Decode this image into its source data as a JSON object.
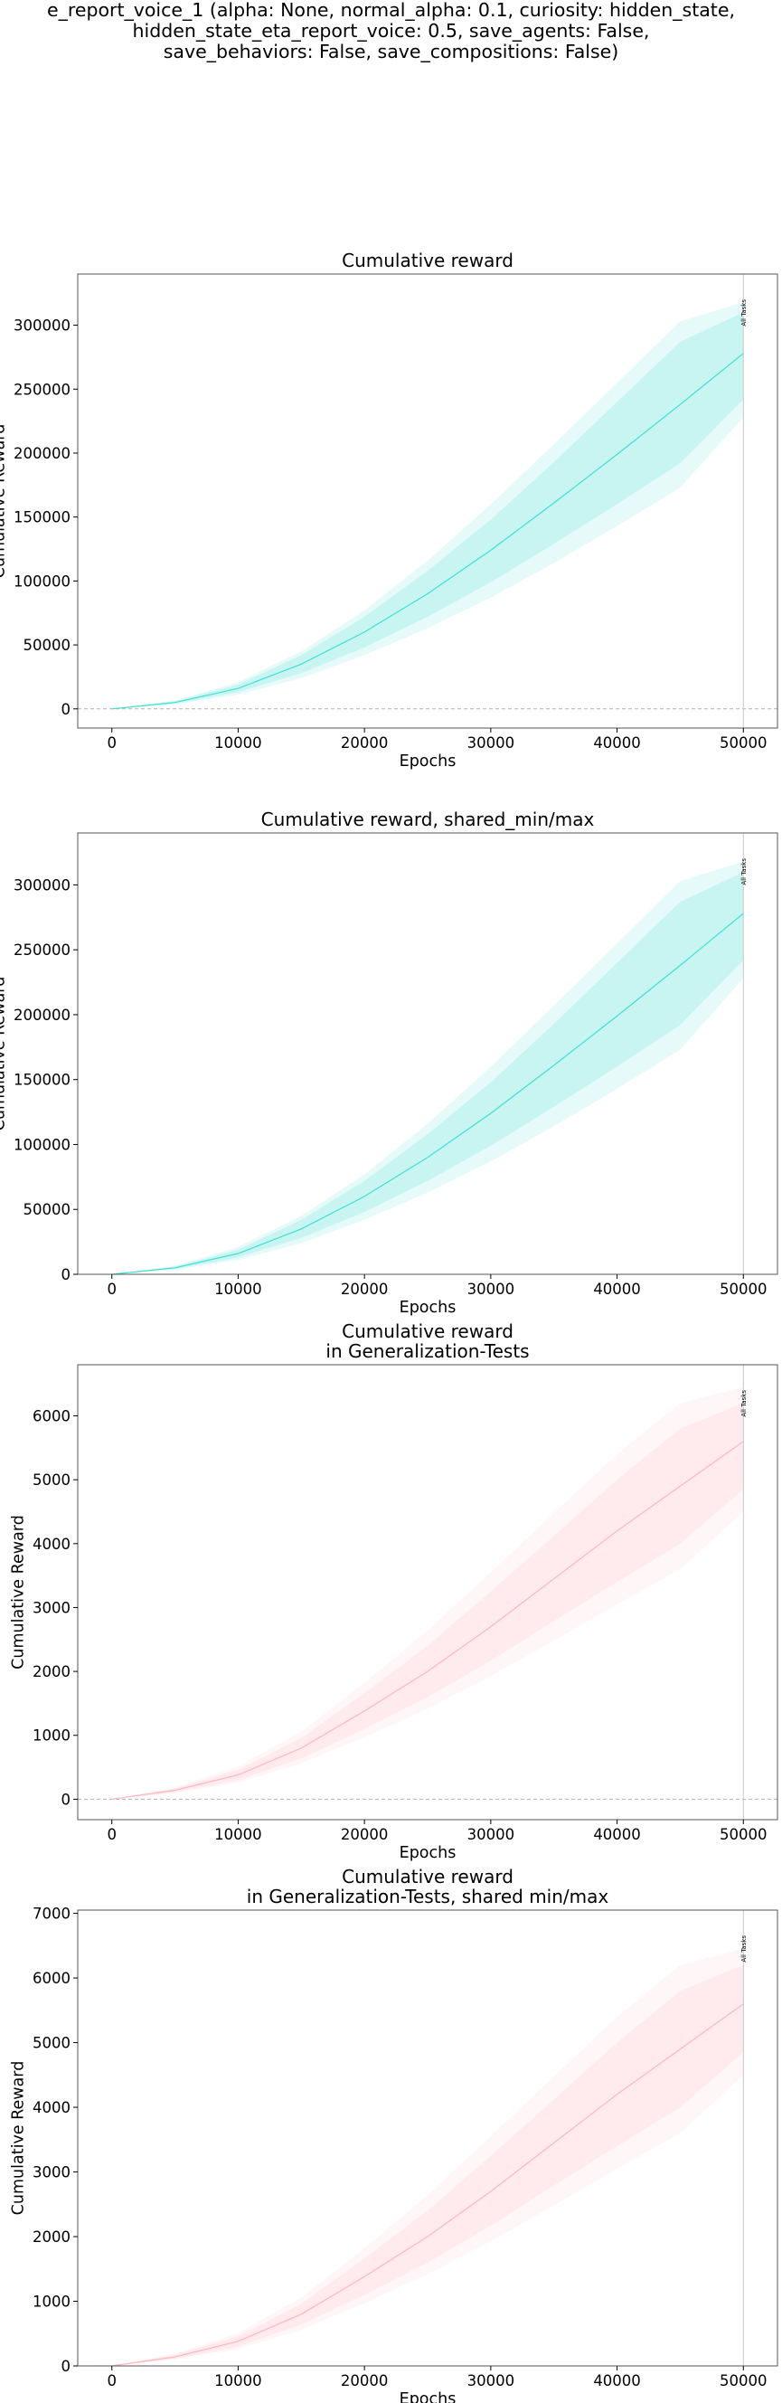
{
  "figure": {
    "title_lines": [
      "e_report_voice_1 (alpha: None, normal_alpha: 0.1, curiosity: hidden_state,",
      "hidden_state_eta_report_voice: 0.5, save_agents: False,",
      "save_behaviors: False, save_compositions: False)"
    ]
  },
  "chart_data": [
    {
      "type": "line",
      "title_lines": [
        "Cumulative reward"
      ],
      "xlabel": "Epochs",
      "ylabel": "Cumulative Reward",
      "xlim": [
        -2700,
        52700
      ],
      "ylim": [
        -15000,
        340000
      ],
      "xticks": [
        0,
        10000,
        20000,
        30000,
        40000,
        50000
      ],
      "yticks": [
        0,
        50000,
        100000,
        150000,
        200000,
        250000,
        300000
      ],
      "zero_line": true,
      "vline": {
        "x": 50000,
        "label": "All Tasks"
      },
      "color": "#40e0d0",
      "series": [
        {
          "x": [
            0,
            5000,
            10000,
            15000,
            20000,
            25000,
            30000,
            35000,
            40000,
            45000,
            50000
          ],
          "y": [
            0,
            5000,
            16000,
            35000,
            60000,
            90000,
            124000,
            161000,
            199000,
            238000,
            278000
          ],
          "std_low": [
            0,
            4000,
            13000,
            28000,
            48000,
            72000,
            99000,
            129000,
            160000,
            192000,
            242000
          ],
          "std_high": [
            0,
            6000,
            19000,
            42000,
            72000,
            108000,
            148000,
            193000,
            240000,
            287000,
            310000
          ],
          "min": [
            0,
            3500,
            11000,
            24000,
            42000,
            63000,
            87000,
            114000,
            143000,
            173000,
            228000
          ],
          "max": [
            0,
            6500,
            21000,
            45000,
            77000,
            116000,
            160000,
            207000,
            255000,
            303000,
            318000
          ]
        }
      ]
    },
    {
      "type": "line",
      "title_lines": [
        "Cumulative reward, shared_min/max"
      ],
      "xlabel": "Epochs",
      "ylabel": "Cumulative Reward",
      "xlim": [
        -2700,
        52700
      ],
      "ylim": [
        0,
        340000
      ],
      "xticks": [
        0,
        10000,
        20000,
        30000,
        40000,
        50000
      ],
      "yticks": [
        0,
        50000,
        100000,
        150000,
        200000,
        250000,
        300000
      ],
      "zero_line": false,
      "vline": {
        "x": 50000,
        "label": "All Tasks"
      },
      "color": "#40e0d0",
      "series": [
        {
          "x": [
            0,
            5000,
            10000,
            15000,
            20000,
            25000,
            30000,
            35000,
            40000,
            45000,
            50000
          ],
          "y": [
            0,
            5000,
            16000,
            35000,
            60000,
            90000,
            124000,
            161000,
            199000,
            238000,
            278000
          ],
          "std_low": [
            0,
            4000,
            13000,
            28000,
            48000,
            72000,
            99000,
            129000,
            160000,
            192000,
            242000
          ],
          "std_high": [
            0,
            6000,
            19000,
            42000,
            72000,
            108000,
            148000,
            193000,
            240000,
            287000,
            310000
          ],
          "min": [
            0,
            3500,
            11000,
            24000,
            42000,
            63000,
            87000,
            114000,
            143000,
            173000,
            228000
          ],
          "max": [
            0,
            6500,
            21000,
            45000,
            77000,
            116000,
            160000,
            207000,
            255000,
            303000,
            318000
          ]
        }
      ]
    },
    {
      "type": "line",
      "title_lines": [
        "Cumulative reward",
        "in Generalization-Tests"
      ],
      "xlabel": "Epochs",
      "ylabel": "Cumulative Reward",
      "xlim": [
        -2700,
        52700
      ],
      "ylim": [
        -320,
        6800
      ],
      "xticks": [
        0,
        10000,
        20000,
        30000,
        40000,
        50000
      ],
      "yticks": [
        0,
        1000,
        2000,
        3000,
        4000,
        5000,
        6000
      ],
      "zero_line": true,
      "vline": {
        "x": 50000,
        "label": "All Tasks"
      },
      "color": "#ffb6c1",
      "series": [
        {
          "x": [
            0,
            5000,
            10000,
            15000,
            20000,
            25000,
            30000,
            35000,
            40000,
            45000,
            50000
          ],
          "y": [
            0,
            140,
            380,
            800,
            1380,
            2000,
            2700,
            3450,
            4200,
            4900,
            5600
          ],
          "std_low": [
            0,
            110,
            300,
            640,
            1100,
            1600,
            2170,
            2790,
            3400,
            4000,
            4850
          ],
          "std_high": [
            0,
            170,
            460,
            960,
            1660,
            2400,
            3250,
            4120,
            5000,
            5800,
            6200
          ],
          "min": [
            0,
            95,
            260,
            560,
            970,
            1420,
            1930,
            2480,
            3050,
            3600,
            4500
          ],
          "max": [
            0,
            190,
            510,
            1060,
            1820,
            2640,
            3550,
            4480,
            5400,
            6200,
            6450
          ]
        }
      ]
    },
    {
      "type": "line",
      "title_lines": [
        "Cumulative reward",
        "in Generalization-Tests, shared min/max"
      ],
      "xlabel": "Epochs",
      "ylabel": "Cumulative Reward",
      "xlim": [
        -2700,
        52700
      ],
      "ylim": [
        0,
        7050
      ],
      "xticks": [
        0,
        10000,
        20000,
        30000,
        40000,
        50000
      ],
      "yticks": [
        0,
        1000,
        2000,
        3000,
        4000,
        5000,
        6000,
        7000
      ],
      "zero_line": false,
      "vline": {
        "x": 50000,
        "label": "All Tasks"
      },
      "color": "#ffb6c1",
      "series": [
        {
          "x": [
            0,
            5000,
            10000,
            15000,
            20000,
            25000,
            30000,
            35000,
            40000,
            45000,
            50000
          ],
          "y": [
            0,
            140,
            380,
            800,
            1380,
            2000,
            2700,
            3450,
            4200,
            4900,
            5600
          ],
          "std_low": [
            0,
            110,
            300,
            640,
            1100,
            1600,
            2170,
            2790,
            3400,
            4000,
            4850
          ],
          "std_high": [
            0,
            170,
            460,
            960,
            1660,
            2400,
            3250,
            4120,
            5000,
            5800,
            6200
          ],
          "min": [
            0,
            95,
            260,
            560,
            970,
            1420,
            1930,
            2480,
            3050,
            3600,
            4500
          ],
          "max": [
            0,
            190,
            510,
            1060,
            1820,
            2640,
            3550,
            4480,
            5400,
            6200,
            6450
          ]
        }
      ]
    }
  ]
}
